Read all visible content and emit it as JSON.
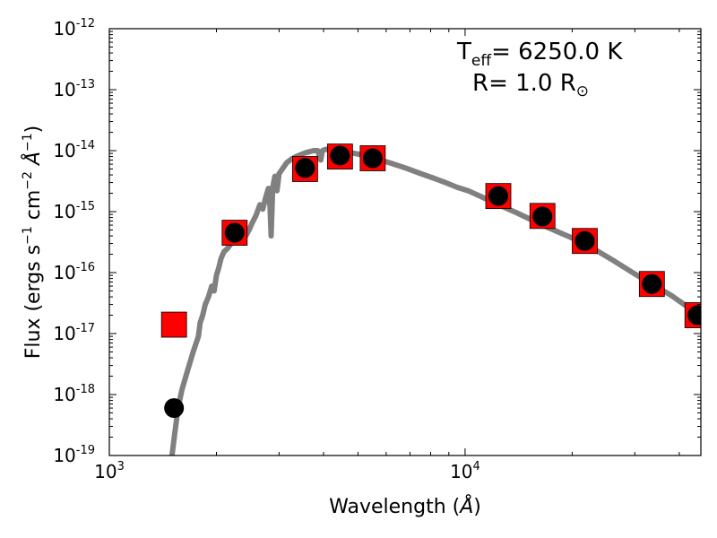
{
  "chart_data": {
    "type": "scatter",
    "title": "",
    "xlabel": "Wavelength",
    "xlabel_unit": "Å",
    "ylabel": "Flux (ergs s",
    "ylabel_parts": {
      "prefix": "Flux (ergs s",
      "sup1": "−1",
      "mid": " cm",
      "sup2": "−2",
      "unit": "Å",
      "sup3": "−1",
      "suffix": ")"
    },
    "x_scale": "log",
    "y_scale": "log",
    "xlim": [
      1000,
      46000
    ],
    "ylim": [
      1e-19,
      1e-12
    ],
    "grid": false,
    "x_ticks": [
      {
        "base": "10",
        "exp": "3",
        "value": 1000
      },
      {
        "base": "10",
        "exp": "4",
        "value": 10000
      }
    ],
    "y_ticks": [
      {
        "base": "10",
        "exp": "-19",
        "value": 1e-19
      },
      {
        "base": "10",
        "exp": "-18",
        "value": 1e-18
      },
      {
        "base": "10",
        "exp": "-17",
        "value": 1e-17
      },
      {
        "base": "10",
        "exp": "-16",
        "value": 1e-16
      },
      {
        "base": "10",
        "exp": "-15",
        "value": 1e-15
      },
      {
        "base": "10",
        "exp": "-14",
        "value": 1e-14
      },
      {
        "base": "10",
        "exp": "-13",
        "value": 1e-13
      },
      {
        "base": "10",
        "exp": "-12",
        "value": 1e-12
      }
    ],
    "annotations": {
      "teff_symbol": "T",
      "teff_sub": "eff",
      "teff_text": "= 6250.0 K",
      "radius_text": "R= 1.0 R",
      "radius_sub": "⊙"
    },
    "colors": {
      "observed": "#ff0000",
      "model_points": "#000000",
      "model_spectrum": "#808080"
    },
    "series": [
      {
        "type": "scatter-square",
        "x": [
          1520,
          2250,
          3550,
          4450,
          5500,
          12400,
          16500,
          21700,
          33500,
          45000
        ],
        "y": [
          1.4e-17,
          4.5e-16,
          5e-15,
          8e-15,
          7.5e-15,
          1.8e-15,
          8.5e-16,
          3.3e-16,
          6.5e-17,
          2e-17
        ]
      },
      {
        "type": "scatter-circle",
        "x": [
          1520,
          2250,
          3550,
          4450,
          5500,
          12400,
          16500,
          21700,
          33500,
          45000
        ],
        "y": [
          6e-19,
          4.5e-16,
          5.2e-15,
          8.3e-15,
          7.5e-15,
          1.8e-15,
          8.3e-16,
          3.3e-16,
          6.5e-17,
          2e-17
        ]
      },
      {
        "type": "line",
        "x": [
          1500,
          1530,
          1560,
          1600,
          1660,
          1720,
          1780,
          1800,
          1830,
          1860,
          1900,
          1940,
          1970,
          2000,
          2030,
          2060,
          2100,
          2150,
          2200,
          2260,
          2320,
          2380,
          2420,
          2470,
          2520,
          2580,
          2650,
          2700,
          2750,
          2800,
          2830,
          2850,
          2880,
          2920,
          2960,
          3000,
          3080,
          3150,
          3250,
          3350,
          3450,
          3550,
          3650,
          3750,
          3850,
          3930,
          3970,
          4050,
          4150,
          4300,
          4500,
          4700,
          5000,
          5300,
          5700,
          6200,
          6800,
          7500,
          8200,
          8800,
          9500,
          10200,
          11000,
          12400,
          14000,
          16500,
          19000,
          21700,
          26000,
          30000,
          33500,
          38000,
          42000,
          46000
        ],
        "y": [
          1e-19,
          2.5e-19,
          6e-19,
          1.2e-18,
          2.5e-18,
          5e-18,
          9e-18,
          1.5e-17,
          2e-17,
          3e-17,
          4e-17,
          6e-17,
          5e-17,
          9e-17,
          1.2e-16,
          1.7e-16,
          2.2e-16,
          2.5e-16,
          3e-16,
          3.5e-16,
          4.5e-16,
          5.5e-16,
          4e-16,
          5e-16,
          6.5e-16,
          8.5e-16,
          1.3e-15,
          1.1e-15,
          1.7e-15,
          2.4e-15,
          1.2e-15,
          4e-16,
          2.5e-15,
          3.8e-15,
          2.2e-15,
          4.2e-15,
          5.2e-15,
          6.3e-15,
          7.3e-15,
          8e-15,
          8.6e-15,
          9.2e-15,
          9.6e-15,
          1e-14,
          1e-14,
          7e-15,
          1e-14,
          1.05e-14,
          1.05e-14,
          1.02e-14,
          9.8e-15,
          9.4e-15,
          8.8e-15,
          8.1e-15,
          7.2e-15,
          6.2e-15,
          5.2e-15,
          4.2e-15,
          3.5e-15,
          3e-15,
          2.5e-15,
          2.2e-15,
          1.8e-15,
          1.3e-15,
          9.5e-16,
          6e-16,
          4.2e-16,
          3e-16,
          1.6e-16,
          9.5e-17,
          6.5e-17,
          4.2e-17,
          2.8e-17,
          2e-17
        ]
      }
    ]
  }
}
